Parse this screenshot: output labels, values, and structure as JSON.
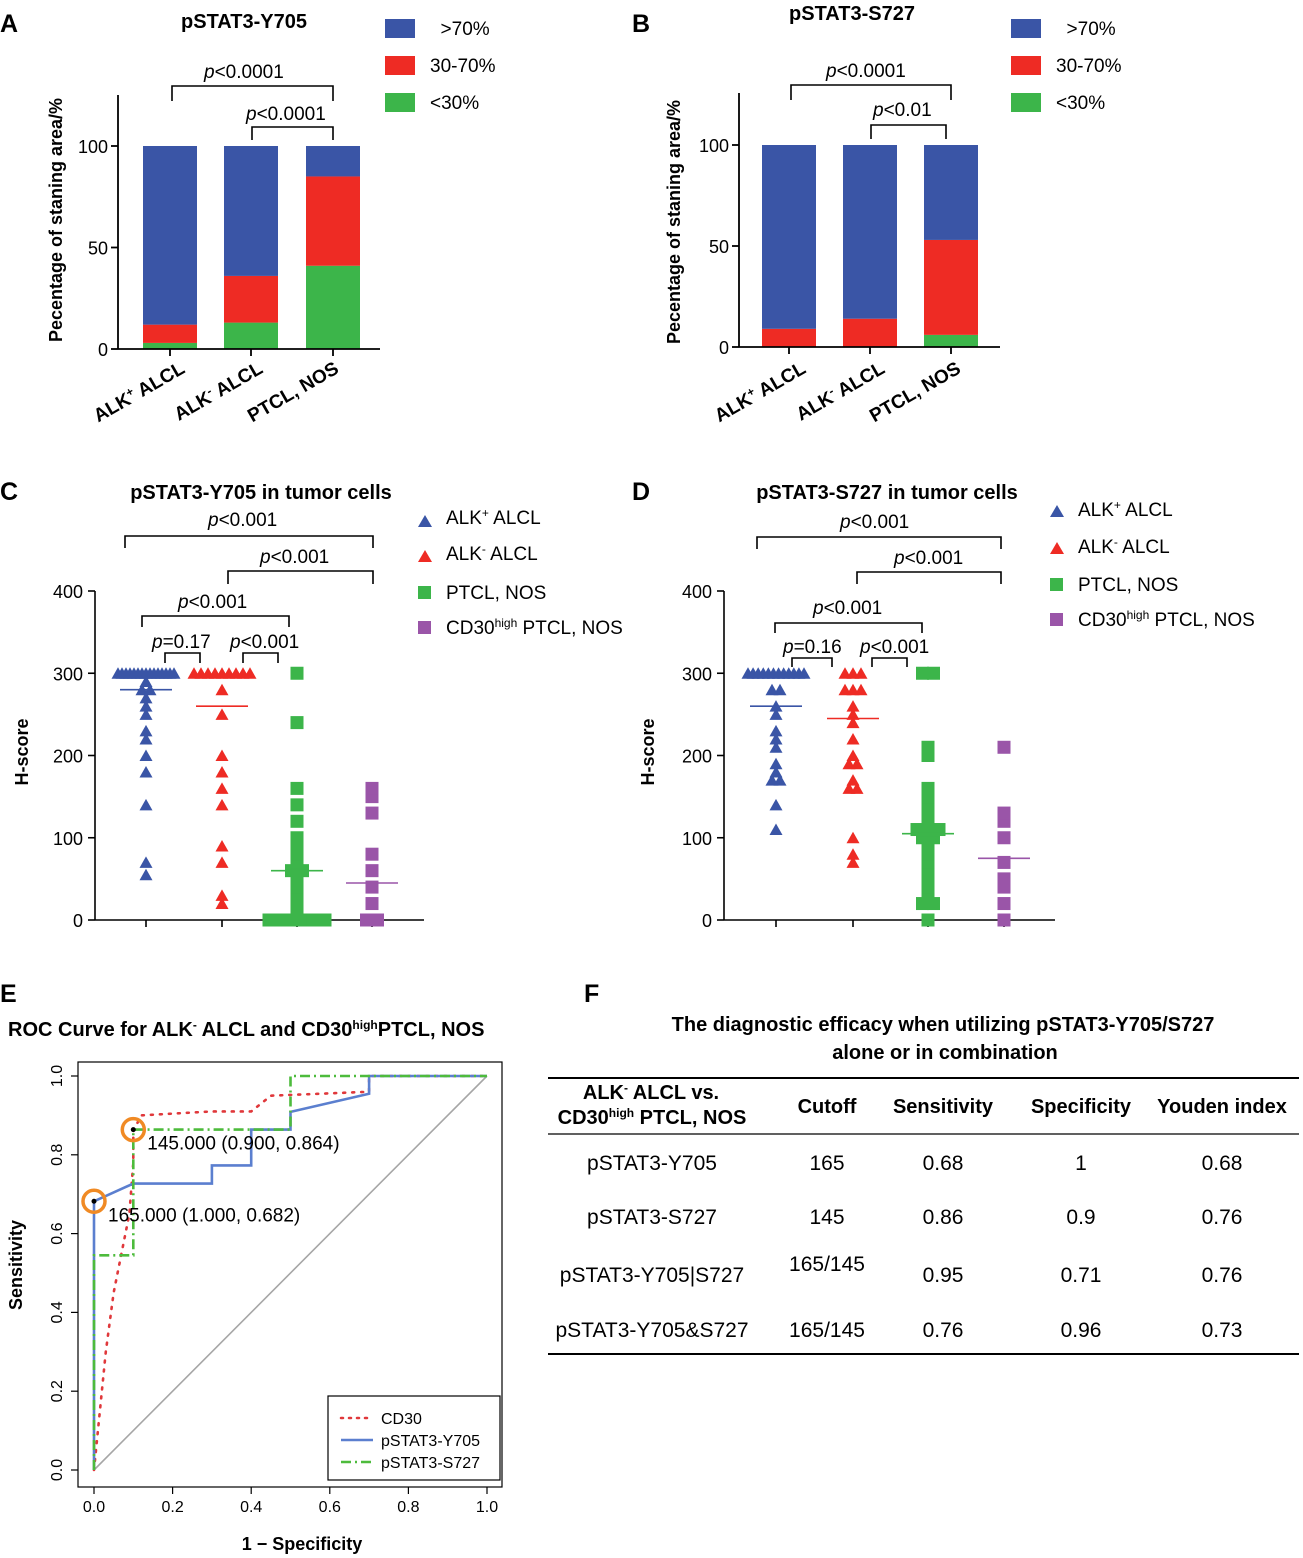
{
  "colors": {
    "blue": "#3a55a6",
    "red": "#ee2b24",
    "green": "#3cb54a",
    "purple": "#9a55a8",
    "orange": "#f08a24",
    "gray": "#a6a6a6",
    "roc_blue": "#5b7fcf",
    "roc_red": "#e0383b",
    "roc_green": "#4dbb3c"
  },
  "panels": {
    "A": {
      "letter": "A",
      "title": "pSTAT3-Y705",
      "ylabel": "Pecentage of staning area/%"
    },
    "B": {
      "letter": "B",
      "title": "pSTAT3-S727",
      "ylabel": "Pecentage of staning area/%"
    },
    "C": {
      "letter": "C",
      "title": "pSTAT3-Y705 in tumor cells",
      "ylabel": "H-score"
    },
    "D": {
      "letter": "D",
      "title": "pSTAT3-S727 in tumor cells",
      "ylabel": "H-score"
    },
    "E": {
      "letter": "E",
      "title_parts": [
        "ROC Curve for ALK",
        "-",
        " ALCL and CD30",
        "high",
        "PTCL, NOS"
      ],
      "xlabel": "1 − Specificity",
      "ylabel": "Sensitivity"
    },
    "F": {
      "letter": "F",
      "title_line1": "The diagnostic efficacy when utilizing pSTAT3-Y705/S727",
      "title_line2": "alone or in combination"
    }
  },
  "bar_legend": [
    "  >70%",
    "30-70%",
    "<30%"
  ],
  "bar_categories": [
    {
      "main": "ALK",
      "sup": "+",
      "rest": " ALCL"
    },
    {
      "main": "ALK",
      "sup": "-",
      "rest": " ALCL"
    },
    {
      "main": "PTCL, NOS",
      "sup": "",
      "rest": ""
    }
  ],
  "scatter_legend": [
    {
      "pre": "ALK",
      "sup": "+",
      "post": " ALCL",
      "shape": "triangle",
      "color": "blue"
    },
    {
      "pre": "ALK",
      "sup": "-",
      "post": " ALCL",
      "shape": "triangle",
      "color": "red"
    },
    {
      "pre": "PTCL, NOS",
      "sup": "",
      "post": "",
      "shape": "square",
      "color": "green"
    },
    {
      "pre": "CD30",
      "sup": "high",
      "post": " PTCL, NOS",
      "shape": "square",
      "color": "purple"
    }
  ],
  "sig": {
    "p": "p",
    "A": [
      "<0.0001",
      "<0.0001"
    ],
    "B": [
      "<0.0001",
      "<0.01"
    ],
    "C": [
      "<0.001",
      "<0.001",
      "<0.001",
      "=0.17",
      "<0.001"
    ],
    "D": [
      "<0.001",
      "<0.001",
      "<0.001",
      "=0.16",
      "<0.001"
    ]
  },
  "chart_data": [
    {
      "panel": "A",
      "type": "bar",
      "stacked": true,
      "title": "pSTAT3-Y705",
      "categories": [
        "ALK+ ALCL",
        "ALK- ALCL",
        "PTCL, NOS"
      ],
      "series": [
        {
          "name": "<30%",
          "values": [
            3,
            13,
            41
          ]
        },
        {
          "name": "30-70%",
          "values": [
            9,
            23,
            44
          ]
        },
        {
          "name": ">70%",
          "values": [
            88,
            64,
            15
          ]
        }
      ],
      "ylabel": "Pecentage of staning area/%",
      "ylim": [
        0,
        100
      ],
      "yticks": [
        0,
        50,
        100
      ]
    },
    {
      "panel": "B",
      "type": "bar",
      "stacked": true,
      "title": "pSTAT3-S727",
      "categories": [
        "ALK+ ALCL",
        "ALK- ALCL",
        "PTCL, NOS"
      ],
      "series": [
        {
          "name": "<30%",
          "values": [
            0,
            0,
            6
          ]
        },
        {
          "name": "30-70%",
          "values": [
            9,
            14,
            47
          ]
        },
        {
          "name": ">70%",
          "values": [
            91,
            86,
            47
          ]
        }
      ],
      "ylabel": "Pecentage of staning area/%",
      "ylim": [
        0,
        100
      ],
      "yticks": [
        0,
        50,
        100
      ]
    },
    {
      "panel": "C",
      "type": "scatter",
      "title": "pSTAT3-Y705 in tumor cells",
      "ylabel": "H-score",
      "ylim": [
        0,
        400
      ],
      "yticks": [
        0,
        100,
        200,
        300,
        400
      ],
      "groups": [
        {
          "name": "ALK+ ALCL",
          "mean": 280,
          "points": [
            300,
            300,
            300,
            300,
            300,
            300,
            300,
            300,
            300,
            300,
            300,
            300,
            300,
            300,
            300,
            290,
            280,
            280,
            270,
            260,
            250,
            230,
            220,
            200,
            180,
            140,
            70,
            55
          ]
        },
        {
          "name": "ALK- ALCL",
          "mean": 260,
          "points": [
            300,
            300,
            300,
            300,
            300,
            300,
            300,
            300,
            300,
            280,
            250,
            200,
            180,
            160,
            140,
            90,
            70,
            30,
            20
          ]
        },
        {
          "name": "PTCL, NOS",
          "mean": 60,
          "points": [
            300,
            240,
            160,
            140,
            120,
            100,
            90,
            80,
            70,
            60,
            60,
            50,
            40,
            30,
            20,
            10,
            5,
            0,
            0,
            0,
            0,
            0,
            0,
            0,
            0,
            0,
            0
          ]
        },
        {
          "name": "CD30high PTCL, NOS",
          "mean": 45,
          "points": [
            160,
            150,
            130,
            80,
            60,
            40,
            20,
            0,
            0
          ]
        }
      ]
    },
    {
      "panel": "D",
      "type": "scatter",
      "title": "pSTAT3-S727 in tumor cells",
      "ylabel": "H-score",
      "ylim": [
        0,
        400
      ],
      "yticks": [
        0,
        100,
        200,
        300,
        400
      ],
      "groups": [
        {
          "name": "ALK+ ALCL",
          "mean": 260,
          "points": [
            300,
            300,
            300,
            300,
            300,
            300,
            300,
            300,
            300,
            300,
            300,
            300,
            280,
            280,
            260,
            250,
            230,
            220,
            210,
            190,
            180,
            170,
            170,
            140,
            110
          ]
        },
        {
          "name": "ALK- ALCL",
          "mean": 245,
          "points": [
            300,
            300,
            300,
            280,
            280,
            280,
            260,
            250,
            240,
            220,
            200,
            190,
            190,
            170,
            160,
            160,
            100,
            80,
            70
          ]
        },
        {
          "name": "PTCL, NOS",
          "mean": 105,
          "points": [
            300,
            300,
            210,
            200,
            160,
            150,
            140,
            130,
            120,
            110,
            110,
            110,
            100,
            100,
            90,
            80,
            70,
            60,
            50,
            40,
            30,
            20,
            20,
            0
          ]
        },
        {
          "name": "CD30high PTCL, NOS",
          "mean": 75,
          "points": [
            210,
            130,
            120,
            100,
            70,
            50,
            40,
            20,
            0
          ]
        }
      ]
    },
    {
      "panel": "E",
      "type": "line",
      "title": "ROC Curve for ALK- ALCL and CD30highPTCL, NOS",
      "xlabel": "1 − Specificity",
      "ylabel": "Sensitivity",
      "xlim": [
        0,
        1
      ],
      "ylim": [
        0,
        1
      ],
      "xticks": [
        "0.0",
        "0.2",
        "0.4",
        "0.6",
        "0.8",
        "1.0"
      ],
      "yticks": [
        "0.0",
        "0.2",
        "0.4",
        "0.6",
        "0.8",
        "1.0"
      ],
      "series": [
        {
          "name": "CD30",
          "style": "dotted",
          "color": "roc_red",
          "points": [
            [
              0,
              0
            ],
            [
              0.005,
              0.05
            ],
            [
              0.01,
              0.1
            ],
            [
              0.02,
              0.2
            ],
            [
              0.03,
              0.3
            ],
            [
              0.05,
              0.45
            ],
            [
              0.07,
              0.55
            ],
            [
              0.09,
              0.65
            ],
            [
              0.1,
              0.78
            ],
            [
              0.1,
              0.86
            ],
            [
              0.12,
              0.9
            ],
            [
              0.3,
              0.91
            ],
            [
              0.4,
              0.91
            ],
            [
              0.45,
              0.95
            ],
            [
              0.7,
              0.96
            ],
            [
              0.7,
              1.0
            ],
            [
              1.0,
              1.0
            ]
          ]
        },
        {
          "name": "pSTAT3-Y705",
          "style": "solid",
          "color": "roc_blue",
          "points": [
            [
              0,
              0
            ],
            [
              0,
              0.682
            ],
            [
              0.1,
              0.727
            ],
            [
              0.3,
              0.727
            ],
            [
              0.3,
              0.773
            ],
            [
              0.4,
              0.773
            ],
            [
              0.4,
              0.864
            ],
            [
              0.5,
              0.864
            ],
            [
              0.5,
              0.909
            ],
            [
              0.7,
              0.955
            ],
            [
              0.7,
              1.0
            ],
            [
              1.0,
              1.0
            ]
          ]
        },
        {
          "name": "pSTAT3-S727",
          "style": "dashdot",
          "color": "roc_green",
          "points": [
            [
              0,
              0
            ],
            [
              0,
              0.545
            ],
            [
              0.1,
              0.545
            ],
            [
              0.1,
              0.864
            ],
            [
              0.5,
              0.864
            ],
            [
              0.5,
              1.0
            ],
            [
              1.0,
              1.0
            ]
          ]
        }
      ],
      "annotations": [
        {
          "x": 0.1,
          "y": 0.864,
          "label": "145.000 (0.900, 0.864)"
        },
        {
          "x": 0.0,
          "y": 0.682,
          "label": "165.000 (1.000, 0.682)"
        }
      ],
      "legend": [
        "CD30",
        "pSTAT3-Y705",
        "pSTAT3-S727"
      ],
      "legend_position": "bottom-right"
    },
    {
      "panel": "F",
      "type": "table",
      "header": {
        "col0_line1_pre": "ALK",
        "col0_line1_sup": "-",
        "col0_line1_post": " ALCL vs.",
        "col0_line2_pre": "CD30",
        "col0_line2_sup": "high",
        "col0_line2_post": " PTCL, NOS",
        "cols": [
          "Cutoff",
          "Sensitivity",
          "Specificity",
          "Youden index"
        ]
      },
      "rows": [
        [
          "pSTAT3-Y705",
          "165",
          "0.68",
          "1",
          "0.68"
        ],
        [
          "pSTAT3-S727",
          "145",
          "0.86",
          "0.9",
          "0.76"
        ],
        [
          "pSTAT3-Y705|S727",
          "165/145",
          "0.95",
          "0.71",
          "0.76"
        ],
        [
          "pSTAT3-Y705&S727",
          "165/145",
          "0.76",
          "0.96",
          "0.73"
        ]
      ]
    }
  ]
}
